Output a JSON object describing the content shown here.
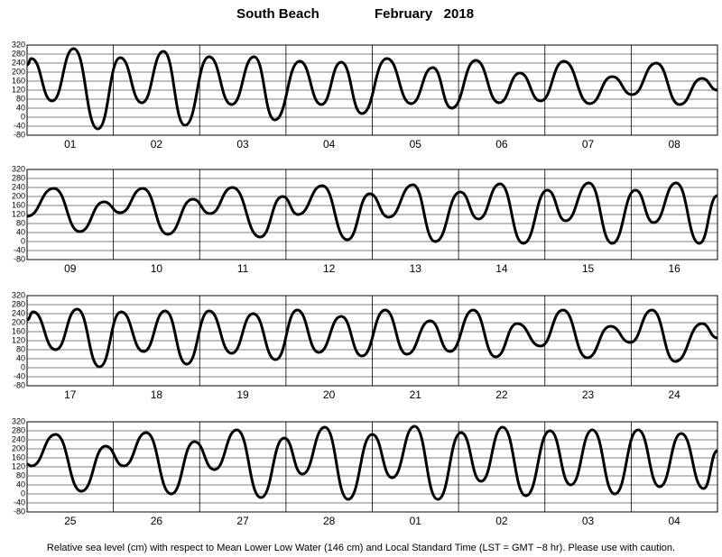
{
  "title": "South Beach",
  "date": "February   2018",
  "caption": "Relative sea level (cm) with respect to Mean Lower Low Water (146 cm) and Local Standard Time (LST = GMT −8 hr). Please use with caution.",
  "chart_data": [
    {
      "type": "line",
      "categories": [
        "01",
        "02",
        "03",
        "04",
        "05",
        "06",
        "07",
        "08"
      ],
      "xlim": [
        0,
        8
      ],
      "ylim": [
        -80,
        320
      ],
      "yticks": [
        320,
        280,
        240,
        200,
        160,
        120,
        80,
        40,
        0,
        -40,
        -80
      ],
      "color": "#000000",
      "x": [
        0,
        0.05,
        0.29,
        0.54,
        0.82,
        1.08,
        1.33,
        1.58,
        1.83,
        2.11,
        2.37,
        2.63,
        2.87,
        3.16,
        3.41,
        3.64,
        3.88,
        4.17,
        4.45,
        4.7,
        4.92,
        5.2,
        5.47,
        5.71,
        5.95,
        6.22,
        6.52,
        6.78,
        7.01,
        7.29,
        7.56,
        7.82,
        8.0
      ],
      "values": [
        232,
        260,
        72,
        304,
        -52,
        264,
        64,
        292,
        -36,
        268,
        56,
        268,
        -12,
        248,
        56,
        244,
        16,
        260,
        60,
        220,
        40,
        252,
        64,
        196,
        72,
        248,
        60,
        180,
        100,
        240,
        56,
        172,
        120
      ]
    },
    {
      "type": "line",
      "categories": [
        "09",
        "10",
        "11",
        "12",
        "13",
        "14",
        "15",
        "16"
      ],
      "xlim": [
        0,
        8
      ],
      "ylim": [
        -80,
        320
      ],
      "yticks": [
        320,
        280,
        240,
        200,
        160,
        120,
        80,
        40,
        0,
        -40,
        -80
      ],
      "color": "#000000",
      "x": [
        0,
        0.31,
        0.61,
        0.89,
        1.08,
        1.34,
        1.63,
        1.92,
        2.12,
        2.38,
        2.7,
        2.96,
        3.14,
        3.42,
        3.71,
        3.97,
        4.19,
        4.47,
        4.73,
        5.02,
        5.23,
        5.48,
        5.75,
        6.03,
        6.24,
        6.51,
        6.78,
        7.05,
        7.26,
        7.52,
        7.79,
        8.0
      ],
      "values": [
        112,
        236,
        44,
        176,
        128,
        236,
        32,
        188,
        124,
        240,
        20,
        200,
        120,
        248,
        8,
        212,
        108,
        252,
        0,
        220,
        100,
        256,
        -8,
        228,
        92,
        260,
        -8,
        228,
        84,
        260,
        -8,
        204
      ]
    },
    {
      "type": "line",
      "categories": [
        "17",
        "18",
        "19",
        "20",
        "21",
        "22",
        "23",
        "24"
      ],
      "xlim": [
        0,
        8
      ],
      "ylim": [
        -80,
        320
      ],
      "yticks": [
        320,
        280,
        240,
        200,
        160,
        120,
        80,
        40,
        0,
        -40,
        -80
      ],
      "color": "#000000",
      "x": [
        0,
        0.07,
        0.33,
        0.58,
        0.84,
        1.09,
        1.35,
        1.6,
        1.85,
        2.11,
        2.37,
        2.62,
        2.88,
        3.13,
        3.38,
        3.64,
        3.88,
        4.15,
        4.4,
        4.67,
        4.9,
        5.17,
        5.43,
        5.68,
        5.95,
        6.21,
        6.49,
        6.76,
        6.99,
        7.24,
        7.51,
        7.82,
        8.0
      ],
      "values": [
        212,
        248,
        80,
        260,
        4,
        248,
        72,
        252,
        16,
        252,
        64,
        240,
        36,
        256,
        68,
        228,
        52,
        256,
        60,
        208,
        72,
        256,
        48,
        196,
        96,
        256,
        44,
        184,
        112,
        256,
        28,
        196,
        132
      ]
    },
    {
      "type": "line",
      "categories": [
        "25",
        "26",
        "27",
        "28",
        "01",
        "02",
        "03",
        "04"
      ],
      "xlim": [
        0,
        8
      ],
      "ylim": [
        -80,
        320
      ],
      "yticks": [
        320,
        280,
        240,
        200,
        160,
        120,
        80,
        40,
        0,
        -40,
        -80
      ],
      "color": "#000000",
      "x": [
        0,
        0.05,
        0.33,
        0.63,
        0.91,
        1.12,
        1.38,
        1.67,
        1.94,
        2.17,
        2.43,
        2.71,
        2.98,
        3.19,
        3.45,
        3.72,
        4.0,
        4.23,
        4.49,
        4.76,
        5.03,
        5.26,
        5.51,
        5.78,
        6.06,
        6.3,
        6.55,
        6.81,
        7.08,
        7.33,
        7.58,
        7.84,
        8.0
      ],
      "values": [
        132,
        124,
        264,
        12,
        212,
        124,
        272,
        0,
        232,
        108,
        284,
        -16,
        248,
        88,
        296,
        -24,
        264,
        72,
        300,
        -24,
        272,
        56,
        296,
        -8,
        280,
        40,
        284,
        0,
        284,
        32,
        268,
        24,
        192
      ]
    }
  ]
}
